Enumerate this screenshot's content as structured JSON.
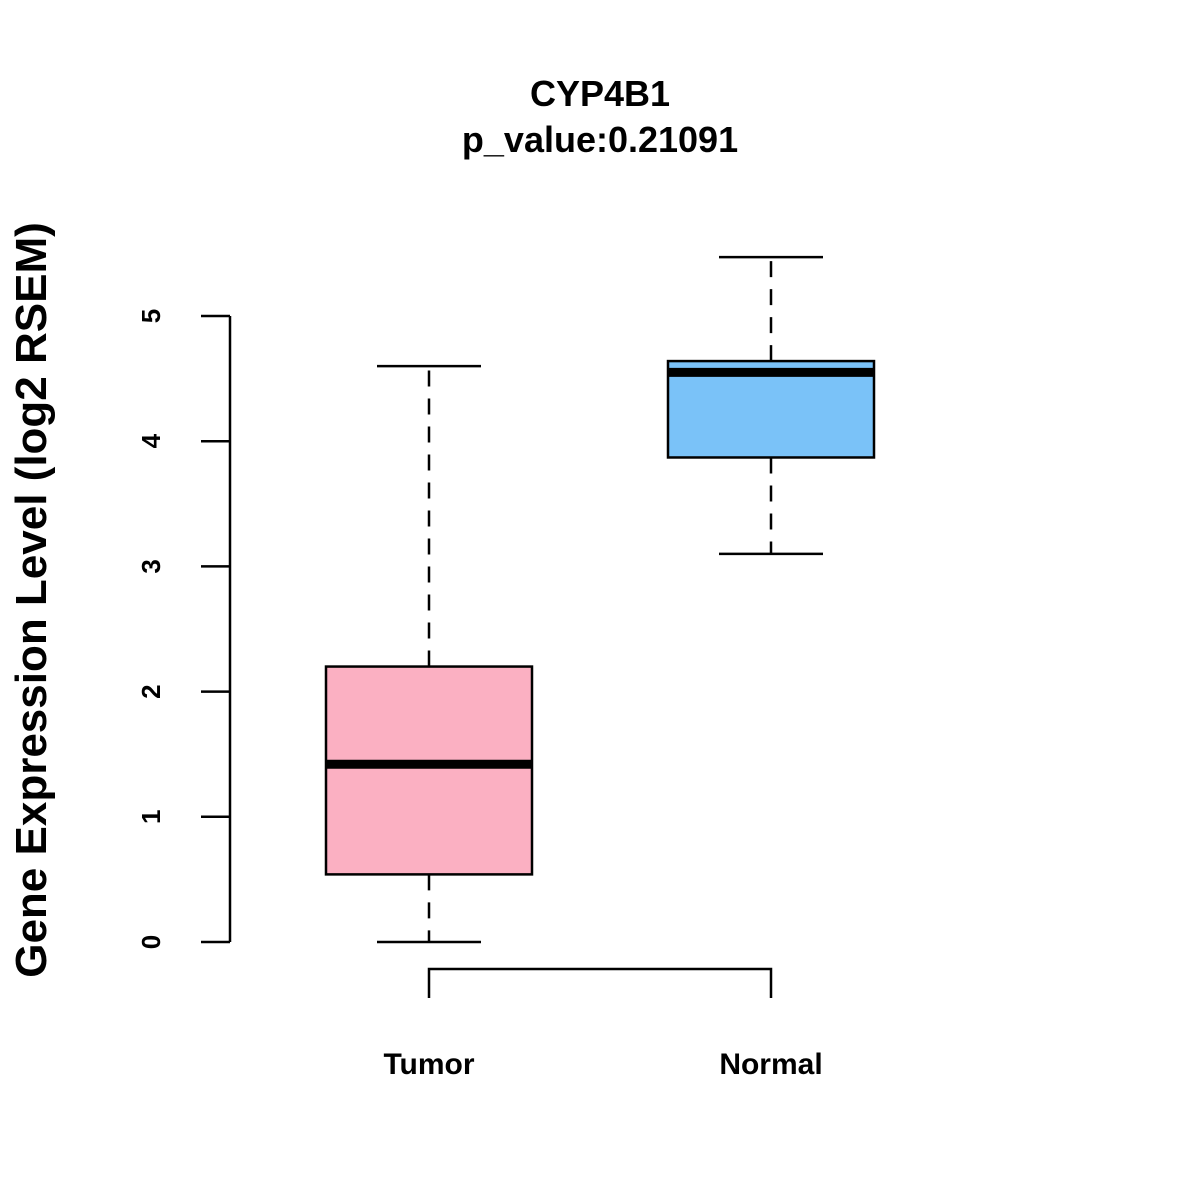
{
  "chart_data": {
    "type": "boxplot",
    "title": "CYP4B1",
    "subtitle": "p_value:0.21091",
    "xlabel": "",
    "ylabel": "Gene Expression Level (log2 RSEM)",
    "ylim": [
      0,
      5
    ],
    "yticks": [
      0,
      1,
      2,
      3,
      4,
      5
    ],
    "categories": [
      "Tumor",
      "Normal"
    ],
    "comparison_bracket": [
      "Tumor",
      "Normal"
    ],
    "boxes": [
      {
        "name": "Tumor",
        "min": 0.0,
        "q1": 0.54,
        "median": 1.42,
        "q3": 2.2,
        "max": 4.6,
        "color": "#FBB0C2"
      },
      {
        "name": "Normal",
        "min": 3.1,
        "q1": 3.87,
        "median": 4.55,
        "q3": 4.64,
        "max": 5.47,
        "color": "#7AC2F8"
      }
    ]
  }
}
